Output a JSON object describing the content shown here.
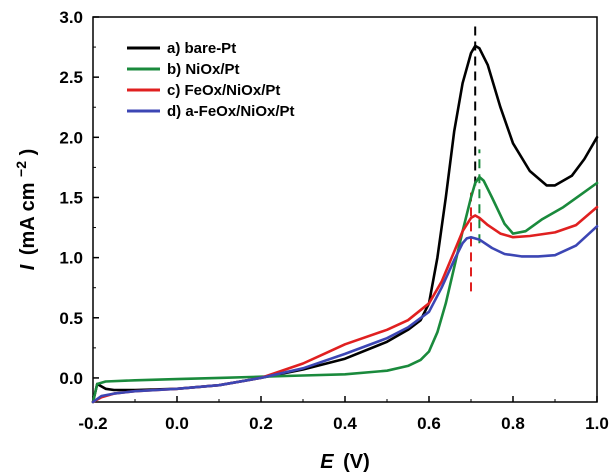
{
  "chart_data": {
    "type": "line",
    "xlabel_var": "E",
    "xlabel_unit": "(V)",
    "ylabel_var": "I",
    "ylabel_unit": "(mA cm",
    "ylabel_exp": "−2",
    "ylabel_close": ")",
    "xlim": [
      -0.2,
      1.0
    ],
    "ylim": [
      -0.2,
      3.0
    ],
    "x_ticks": [
      -0.2,
      0.0,
      0.2,
      0.4,
      0.6,
      0.8,
      1.0
    ],
    "x_tick_labels": [
      "-0.2",
      "0.0",
      "0.2",
      "0.4",
      "0.6",
      "0.8",
      "1.0"
    ],
    "y_ticks": [
      0.0,
      0.5,
      1.0,
      1.5,
      2.0,
      2.5,
      3.0
    ],
    "y_tick_labels": [
      "0.0",
      "0.5",
      "1.0",
      "1.5",
      "2.0",
      "2.5",
      "3.0"
    ],
    "grid": false,
    "legend_position": "top-left",
    "series": [
      {
        "name": "a) bare-Pt",
        "color": "#000000",
        "points": [
          [
            -0.2,
            -0.2
          ],
          [
            -0.19,
            -0.05
          ],
          [
            -0.17,
            -0.09
          ],
          [
            -0.15,
            -0.1
          ],
          [
            -0.1,
            -0.1
          ],
          [
            0.0,
            -0.09
          ],
          [
            0.1,
            -0.06
          ],
          [
            0.2,
            0.0
          ],
          [
            0.3,
            0.07
          ],
          [
            0.4,
            0.16
          ],
          [
            0.5,
            0.3
          ],
          [
            0.55,
            0.4
          ],
          [
            0.58,
            0.48
          ],
          [
            0.6,
            0.62
          ],
          [
            0.62,
            1.0
          ],
          [
            0.64,
            1.5
          ],
          [
            0.66,
            2.05
          ],
          [
            0.68,
            2.45
          ],
          [
            0.7,
            2.7
          ],
          [
            0.71,
            2.76
          ],
          [
            0.72,
            2.74
          ],
          [
            0.74,
            2.6
          ],
          [
            0.77,
            2.25
          ],
          [
            0.8,
            1.95
          ],
          [
            0.84,
            1.72
          ],
          [
            0.88,
            1.6
          ],
          [
            0.9,
            1.6
          ],
          [
            0.94,
            1.68
          ],
          [
            0.97,
            1.82
          ],
          [
            1.0,
            2.0
          ]
        ],
        "peak_marker": {
          "x": 0.71,
          "y_from": 1.6,
          "y_to": 2.97
        }
      },
      {
        "name": "b) NiOx/Pt",
        "color": "#1a8a3c",
        "points": [
          [
            -0.2,
            -0.2
          ],
          [
            -0.19,
            -0.05
          ],
          [
            -0.17,
            -0.03
          ],
          [
            -0.1,
            -0.02
          ],
          [
            0.0,
            -0.01
          ],
          [
            0.1,
            0.0
          ],
          [
            0.2,
            0.01
          ],
          [
            0.3,
            0.02
          ],
          [
            0.4,
            0.03
          ],
          [
            0.5,
            0.06
          ],
          [
            0.55,
            0.1
          ],
          [
            0.58,
            0.15
          ],
          [
            0.6,
            0.22
          ],
          [
            0.62,
            0.38
          ],
          [
            0.64,
            0.62
          ],
          [
            0.66,
            0.92
          ],
          [
            0.68,
            1.22
          ],
          [
            0.7,
            1.5
          ],
          [
            0.71,
            1.62
          ],
          [
            0.72,
            1.67
          ],
          [
            0.73,
            1.64
          ],
          [
            0.75,
            1.5
          ],
          [
            0.78,
            1.28
          ],
          [
            0.8,
            1.2
          ],
          [
            0.83,
            1.22
          ],
          [
            0.87,
            1.32
          ],
          [
            0.92,
            1.42
          ],
          [
            0.96,
            1.52
          ],
          [
            1.0,
            1.62
          ]
        ],
        "peak_marker": {
          "x": 0.72,
          "y_from": 1.12,
          "y_to": 1.9
        }
      },
      {
        "name": "c) FeOx/NiOx/Pt",
        "color": "#e02020",
        "points": [
          [
            -0.2,
            -0.2
          ],
          [
            -0.18,
            -0.16
          ],
          [
            -0.15,
            -0.13
          ],
          [
            -0.1,
            -0.11
          ],
          [
            0.0,
            -0.09
          ],
          [
            0.1,
            -0.06
          ],
          [
            0.2,
            0.0
          ],
          [
            0.3,
            0.12
          ],
          [
            0.35,
            0.2
          ],
          [
            0.4,
            0.28
          ],
          [
            0.5,
            0.4
          ],
          [
            0.55,
            0.48
          ],
          [
            0.6,
            0.62
          ],
          [
            0.63,
            0.8
          ],
          [
            0.66,
            1.05
          ],
          [
            0.68,
            1.22
          ],
          [
            0.7,
            1.33
          ],
          [
            0.71,
            1.35
          ],
          [
            0.72,
            1.33
          ],
          [
            0.74,
            1.27
          ],
          [
            0.77,
            1.2
          ],
          [
            0.8,
            1.17
          ],
          [
            0.84,
            1.18
          ],
          [
            0.9,
            1.21
          ],
          [
            0.95,
            1.27
          ],
          [
            1.0,
            1.42
          ]
        ],
        "peak_marker": {
          "x": 0.7,
          "y_from": 0.72,
          "y_to": 1.54
        }
      },
      {
        "name": "d) a-FeOx/NiOx/Pt",
        "color": "#3c46b4",
        "points": [
          [
            -0.2,
            -0.2
          ],
          [
            -0.18,
            -0.15
          ],
          [
            -0.15,
            -0.13
          ],
          [
            -0.1,
            -0.11
          ],
          [
            0.0,
            -0.09
          ],
          [
            0.1,
            -0.06
          ],
          [
            0.2,
            0.0
          ],
          [
            0.3,
            0.08
          ],
          [
            0.4,
            0.2
          ],
          [
            0.5,
            0.33
          ],
          [
            0.55,
            0.42
          ],
          [
            0.6,
            0.55
          ],
          [
            0.63,
            0.75
          ],
          [
            0.66,
            0.98
          ],
          [
            0.68,
            1.12
          ],
          [
            0.69,
            1.16
          ],
          [
            0.7,
            1.17
          ],
          [
            0.72,
            1.15
          ],
          [
            0.75,
            1.08
          ],
          [
            0.78,
            1.03
          ],
          [
            0.82,
            1.01
          ],
          [
            0.86,
            1.01
          ],
          [
            0.9,
            1.02
          ],
          [
            0.95,
            1.1
          ],
          [
            1.0,
            1.26
          ]
        ]
      }
    ]
  }
}
